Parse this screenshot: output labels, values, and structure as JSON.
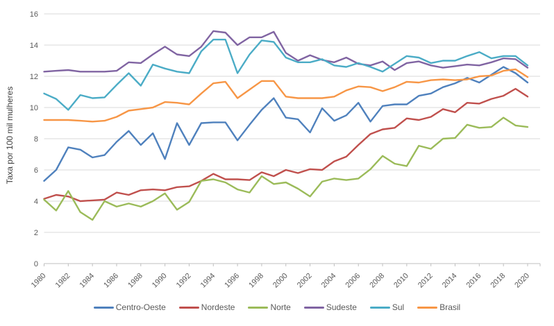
{
  "chart_data": {
    "type": "line",
    "title": "",
    "xlabel": "",
    "ylabel": "Taxa por 100 mil mulheres",
    "ylim": [
      0,
      16
    ],
    "ytick_step": 2,
    "ytick_labels": [
      "0",
      "2",
      "4",
      "6",
      "8",
      "10",
      "12",
      "14",
      "16"
    ],
    "xtick_labels": [
      "1980",
      "1982",
      "1984",
      "1986",
      "1988",
      "1990",
      "1992",
      "1994",
      "1996",
      "1998",
      "2000",
      "2002",
      "2004",
      "2006",
      "2008",
      "2010",
      "2012",
      "2014",
      "2016",
      "2018",
      "2020"
    ],
    "grid": true,
    "legend_position": "bottom",
    "x": [
      1980,
      1981,
      1982,
      1983,
      1984,
      1985,
      1986,
      1987,
      1988,
      1989,
      1990,
      1991,
      1992,
      1993,
      1994,
      1995,
      1996,
      1997,
      1998,
      1999,
      2000,
      2001,
      2002,
      2003,
      2004,
      2005,
      2006,
      2007,
      2008,
      2009,
      2010,
      2011,
      2012,
      2013,
      2014,
      2015,
      2016,
      2017,
      2018,
      2019,
      2020
    ],
    "series": [
      {
        "name": "Centro-Oeste",
        "color": "#4F81BD",
        "values": [
          5.3,
          6.0,
          7.45,
          7.3,
          6.8,
          6.95,
          7.8,
          8.5,
          7.6,
          8.35,
          6.7,
          9.0,
          7.6,
          9.0,
          9.05,
          9.05,
          7.9,
          8.9,
          9.85,
          10.6,
          9.35,
          9.25,
          8.4,
          9.95,
          9.15,
          9.5,
          10.3,
          9.1,
          10.1,
          10.2,
          10.2,
          10.75,
          10.9,
          11.3,
          11.55,
          11.9,
          11.6,
          12.1,
          12.6,
          12.2,
          11.6
        ]
      },
      {
        "name": "Nordeste",
        "color": "#C0504D",
        "values": [
          4.15,
          4.4,
          4.3,
          4.0,
          4.05,
          4.1,
          4.55,
          4.4,
          4.7,
          4.75,
          4.7,
          4.9,
          4.95,
          5.3,
          5.75,
          5.4,
          5.4,
          5.35,
          5.85,
          5.6,
          6.0,
          5.8,
          6.05,
          6.0,
          6.55,
          6.85,
          7.6,
          8.3,
          8.6,
          8.7,
          9.3,
          9.2,
          9.4,
          9.9,
          9.7,
          10.3,
          10.25,
          10.55,
          10.75,
          11.2,
          10.7
        ]
      },
      {
        "name": "Norte",
        "color": "#9BBB59",
        "values": [
          4.1,
          3.4,
          4.65,
          3.3,
          2.8,
          4.0,
          3.65,
          3.85,
          3.65,
          4.0,
          4.5,
          3.45,
          3.95,
          5.3,
          5.4,
          5.2,
          4.75,
          4.55,
          5.6,
          5.1,
          5.2,
          4.8,
          4.3,
          5.25,
          5.45,
          5.35,
          5.45,
          6.05,
          6.9,
          6.4,
          6.25,
          7.55,
          7.35,
          8.0,
          8.05,
          8.9,
          8.7,
          8.75,
          9.35,
          8.85,
          8.75
        ]
      },
      {
        "name": "Sudeste",
        "color": "#8064A2",
        "values": [
          12.3,
          12.35,
          12.4,
          12.3,
          12.3,
          12.3,
          12.35,
          12.9,
          12.85,
          13.4,
          13.9,
          13.4,
          13.3,
          13.9,
          14.9,
          14.8,
          14.0,
          14.5,
          14.5,
          14.85,
          13.5,
          13.0,
          13.35,
          13.05,
          12.9,
          13.2,
          12.8,
          12.7,
          12.95,
          12.4,
          12.85,
          12.95,
          12.7,
          12.55,
          12.65,
          12.75,
          12.7,
          12.9,
          13.15,
          13.1,
          12.55
        ]
      },
      {
        "name": "Sul",
        "color": "#4BACC6",
        "values": [
          10.9,
          10.55,
          9.85,
          10.8,
          10.6,
          10.65,
          11.45,
          12.2,
          11.4,
          12.75,
          12.5,
          12.3,
          12.2,
          13.6,
          14.35,
          14.35,
          12.2,
          13.4,
          14.3,
          14.2,
          13.2,
          12.9,
          12.9,
          13.1,
          12.7,
          12.6,
          12.85,
          12.6,
          12.3,
          12.8,
          13.3,
          13.2,
          12.85,
          13.0,
          13.0,
          13.3,
          13.55,
          13.15,
          13.3,
          13.3,
          12.7
        ]
      },
      {
        "name": "Brasil",
        "color": "#F79646",
        "values": [
          9.2,
          9.2,
          9.2,
          9.15,
          9.1,
          9.15,
          9.4,
          9.8,
          9.9,
          10.0,
          10.35,
          10.3,
          10.2,
          10.9,
          11.55,
          11.65,
          10.6,
          11.15,
          11.7,
          11.7,
          10.7,
          10.6,
          10.6,
          10.6,
          10.7,
          11.1,
          11.35,
          11.3,
          11.05,
          11.3,
          11.65,
          11.6,
          11.75,
          11.8,
          11.75,
          11.8,
          12.0,
          12.05,
          12.35,
          12.45,
          11.95
        ]
      }
    ]
  },
  "styles": {
    "background": "#FFFFFF",
    "gridline_color": "#D9D9D9",
    "axis_line_color": "#BFBFBF",
    "tick_label_color": "#595959",
    "axis_title_color": "#404040",
    "line_width": 2.4
  }
}
